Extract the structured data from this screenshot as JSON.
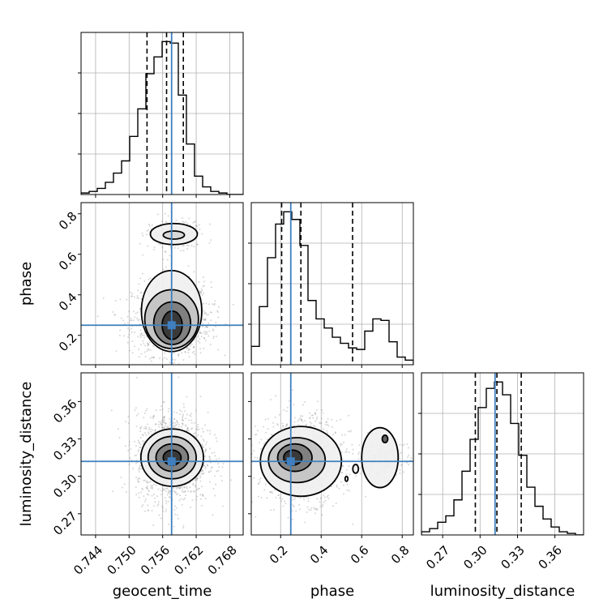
{
  "chart_data": {
    "type": "corner",
    "parameters": [
      "geocent_time",
      "phase",
      "luminosity_distance"
    ],
    "truths": {
      "geocent_time": 0.7576,
      "phase": 0.25,
      "luminosity_distance": 0.312
    },
    "colors": {
      "truth": "#3f7fbf",
      "line": "#000000",
      "grid": "#b0b0b0",
      "points": "#8a8a8a"
    },
    "axes": {
      "geocent_time": {
        "range": [
          0.7414,
          0.7704
        ],
        "ticks": [
          "0.744",
          "0.750",
          "0.756",
          "0.762",
          "0.768"
        ]
      },
      "phase": {
        "range": [
          0.055,
          0.855
        ],
        "ticks": [
          "0.2",
          "0.4",
          "0.6",
          "0.8"
        ]
      },
      "luminosity_distance": {
        "range": [
          0.253,
          0.383
        ],
        "ticks": [
          "0.27",
          "0.30",
          "0.33",
          "0.36"
        ]
      }
    },
    "histograms": {
      "geocent_time": {
        "edges": [
          0.7414,
          0.74285,
          0.7443,
          0.74575,
          0.7472,
          0.74865,
          0.7501,
          0.75155,
          0.753,
          0.75445,
          0.7559,
          0.75735,
          0.7588,
          0.76025,
          0.7617,
          0.76315,
          0.7646,
          0.76605,
          0.7675,
          0.76895,
          0.7704
        ],
        "counts": [
          1,
          2,
          4,
          8,
          14,
          22,
          38,
          56,
          79,
          90,
          100,
          99,
          65,
          33,
          12,
          5,
          2,
          1,
          0,
          0
        ],
        "quantiles": [
          0.7532,
          0.7567,
          0.7597
        ]
      },
      "phase": {
        "edges": [
          0.055,
          0.095,
          0.135,
          0.175,
          0.215,
          0.255,
          0.295,
          0.335,
          0.375,
          0.415,
          0.455,
          0.495,
          0.535,
          0.575,
          0.615,
          0.655,
          0.695,
          0.735,
          0.775,
          0.815,
          0.855
        ],
        "counts": [
          12,
          38,
          70,
          92,
          100,
          95,
          78,
          42,
          30,
          24,
          18,
          14,
          11,
          10,
          22,
          30,
          29,
          15,
          5,
          3
        ],
        "quantiles": [
          0.205,
          0.3,
          0.555
        ]
      },
      "luminosity_distance": {
        "edges": [
          0.253,
          0.2595,
          0.266,
          0.2725,
          0.279,
          0.2855,
          0.292,
          0.2985,
          0.305,
          0.3115,
          0.318,
          0.3245,
          0.331,
          0.3375,
          0.344,
          0.3505,
          0.357,
          0.3635,
          0.37,
          0.3765,
          0.383
        ],
        "counts": [
          2,
          4,
          8,
          12,
          22,
          40,
          60,
          80,
          92,
          96,
          88,
          70,
          50,
          30,
          18,
          10,
          5,
          2,
          1,
          0
        ],
        "quantiles": [
          0.2962,
          0.3135,
          0.333
        ]
      }
    },
    "contours": {
      "phase_vs_geocent_time": {
        "x": "geocent_time",
        "y": "phase",
        "scatter_center": [
          0.7576,
          0.28
        ],
        "scatter_spread": [
          0.0035,
          0.09
        ],
        "second_mode": [
          0.758,
          0.7
        ],
        "ellipses": [
          {
            "cx": 0.7577,
            "cy": 0.25,
            "rx": 0.0018,
            "ry": 0.07,
            "fill": "#333333"
          },
          {
            "cx": 0.7577,
            "cy": 0.26,
            "rx": 0.0033,
            "ry": 0.105,
            "fill": "#7a7a7a"
          },
          {
            "cx": 0.7576,
            "cy": 0.28,
            "rx": 0.0048,
            "ry": 0.145,
            "fill": "#c2c2c2"
          },
          {
            "cx": 0.7576,
            "cy": 0.32,
            "rx": 0.0054,
            "ry": 0.2,
            "fill": "#f0f0f0"
          },
          {
            "cx": 0.758,
            "cy": 0.7,
            "rx": 0.0042,
            "ry": 0.052,
            "fill": "#f0f0f0"
          },
          {
            "cx": 0.758,
            "cy": 0.695,
            "rx": 0.0019,
            "ry": 0.02,
            "fill": "#d6d6d6"
          }
        ]
      },
      "luminosity_distance_vs_geocent_time": {
        "x": "geocent_time",
        "y": "luminosity_distance",
        "scatter_center": [
          0.7577,
          0.315
        ],
        "scatter_spread": [
          0.0032,
          0.018
        ],
        "ellipses": [
          {
            "cx": 0.7577,
            "cy": 0.315,
            "rx": 0.0016,
            "ry": 0.006,
            "fill": "#333333"
          },
          {
            "cx": 0.7577,
            "cy": 0.315,
            "rx": 0.0029,
            "ry": 0.011,
            "fill": "#7a7a7a"
          },
          {
            "cx": 0.7577,
            "cy": 0.315,
            "rx": 0.0043,
            "ry": 0.017,
            "fill": "#c2c2c2"
          },
          {
            "cx": 0.7577,
            "cy": 0.315,
            "rx": 0.0056,
            "ry": 0.023,
            "fill": "#f0f0f0"
          }
        ]
      },
      "luminosity_distance_vs_phase": {
        "x": "phase",
        "y": "luminosity_distance",
        "scatter_center": [
          0.3,
          0.313
        ],
        "scatter_spread": [
          0.1,
          0.017
        ],
        "second_mode": [
          0.7,
          0.315
        ],
        "ellipses": [
          {
            "cx": 0.26,
            "cy": 0.315,
            "rx": 0.045,
            "ry": 0.006,
            "fill": "#333333"
          },
          {
            "cx": 0.27,
            "cy": 0.315,
            "rx": 0.085,
            "ry": 0.011,
            "fill": "#7a7a7a"
          },
          {
            "cx": 0.28,
            "cy": 0.313,
            "rx": 0.14,
            "ry": 0.018,
            "fill": "#c2c2c2"
          },
          {
            "cx": 0.3,
            "cy": 0.312,
            "rx": 0.2,
            "ry": 0.028,
            "fill": "#f0f0f0"
          },
          {
            "cx": 0.69,
            "cy": 0.315,
            "rx": 0.09,
            "ry": 0.024,
            "fill": "#f0f0f0"
          },
          {
            "cx": 0.715,
            "cy": 0.33,
            "rx": 0.014,
            "ry": 0.003,
            "fill": "#555555"
          },
          {
            "cx": 0.57,
            "cy": 0.306,
            "rx": 0.014,
            "ry": 0.0035,
            "fill": "#f0f0f0"
          },
          {
            "cx": 0.525,
            "cy": 0.298,
            "rx": 0.007,
            "ry": 0.002,
            "fill": "#f0f0f0"
          }
        ]
      }
    },
    "xlabels": [
      "geocent_time",
      "phase",
      "luminosity_distance"
    ],
    "ylabels": [
      "",
      "phase",
      "luminosity_distance"
    ]
  }
}
